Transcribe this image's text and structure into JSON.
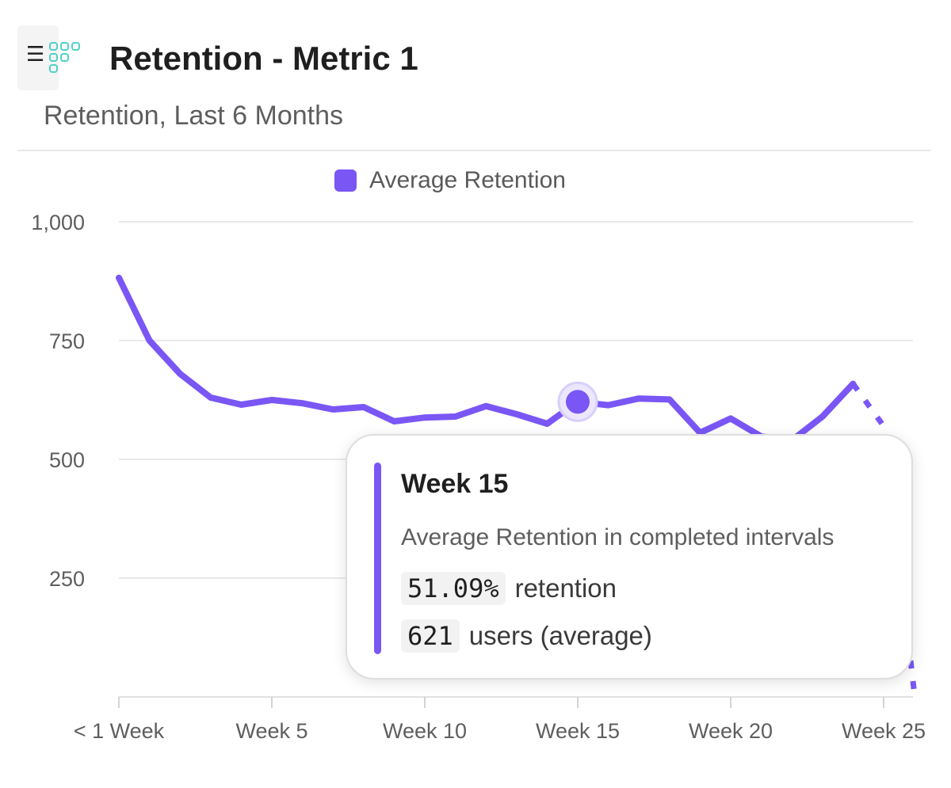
{
  "header": {
    "title": "Retention - Metric 1",
    "subtitle": "Retention, Last 6 Months",
    "menu_icon": "☰",
    "logo_icon": "grid-dots-logo-icon"
  },
  "colors": {
    "accent": "#7a56f5",
    "grid": "#e9e9e9",
    "logo": "#4fd1c5"
  },
  "chart_data": {
    "type": "line",
    "title": "",
    "xlabel": "",
    "ylabel": "",
    "ylim": [
      0,
      1000
    ],
    "yticks": [
      250,
      500,
      750,
      1000
    ],
    "ytick_labels": [
      "250",
      "500",
      "750",
      "1,000"
    ],
    "xlim": [
      0,
      26
    ],
    "xticks": [
      0,
      5,
      10,
      15,
      20,
      25
    ],
    "xtick_labels": [
      "< 1 Week",
      "Week 5",
      "Week 10",
      "Week 15",
      "Week 20",
      "Week 25"
    ],
    "legend": {
      "position": "top-center",
      "entries": [
        "Average Retention"
      ]
    },
    "series": [
      {
        "name": "Average Retention",
        "x": [
          0,
          1,
          2,
          3,
          4,
          5,
          6,
          7,
          8,
          9,
          10,
          11,
          12,
          13,
          14,
          15,
          16,
          17,
          18,
          19,
          20,
          21,
          22,
          23,
          24
        ],
        "values": [
          882,
          750,
          680,
          630,
          615,
          625,
          618,
          605,
          610,
          580,
          588,
          590,
          612,
          595,
          575,
          621,
          614,
          628,
          626,
          556,
          586,
          548,
          540,
          590,
          659
        ],
        "partial": {
          "x": [
            24,
            25,
            26
          ],
          "values": [
            659,
            570,
            10
          ]
        }
      }
    ],
    "highlight": {
      "x": 15,
      "value": 621
    }
  },
  "tooltip": {
    "title": "Week 15",
    "subtitle": "Average Retention in completed intervals",
    "retention_value": "51.09%",
    "retention_label": "retention",
    "users_value": "621",
    "users_label": "users (average)"
  }
}
